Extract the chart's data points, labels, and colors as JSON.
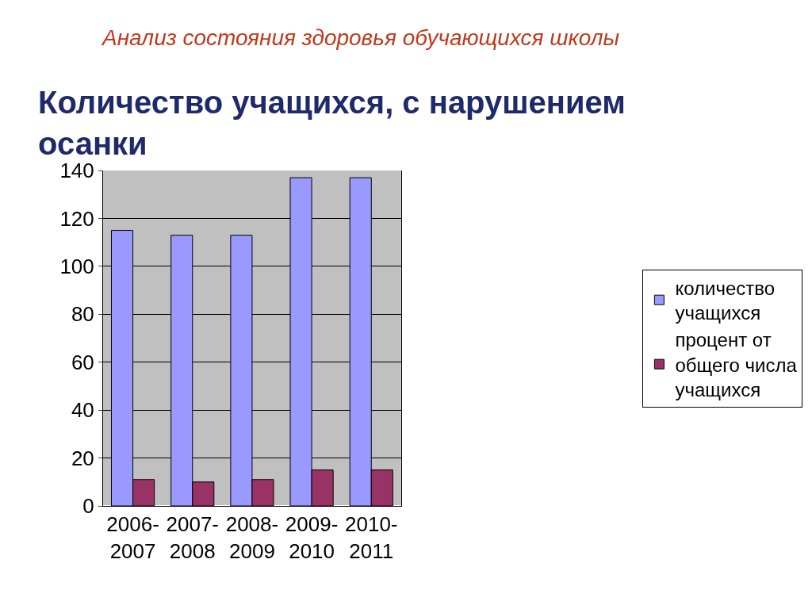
{
  "chart_data": {
    "type": "bar",
    "title": "Анализ состояния здоровья обучающихся школы",
    "subtitle": "Количество учащихся, с нарушением осанки",
    "categories": [
      "2006-2007",
      "2007-2008",
      "2008-2009",
      "2009-2010",
      "2010-2011"
    ],
    "series": [
      {
        "name": "количество учащихся",
        "color": "#9999ff",
        "values": [
          115,
          113,
          113,
          137,
          137
        ]
      },
      {
        "name": "процент от общего числа учащихся",
        "color": "#993366",
        "values": [
          11,
          10,
          11,
          15,
          15
        ]
      }
    ],
    "ylim": [
      0,
      140
    ],
    "yticks": [
      0,
      20,
      40,
      60,
      80,
      100,
      120,
      140
    ],
    "grid": "y",
    "legend": "right"
  }
}
